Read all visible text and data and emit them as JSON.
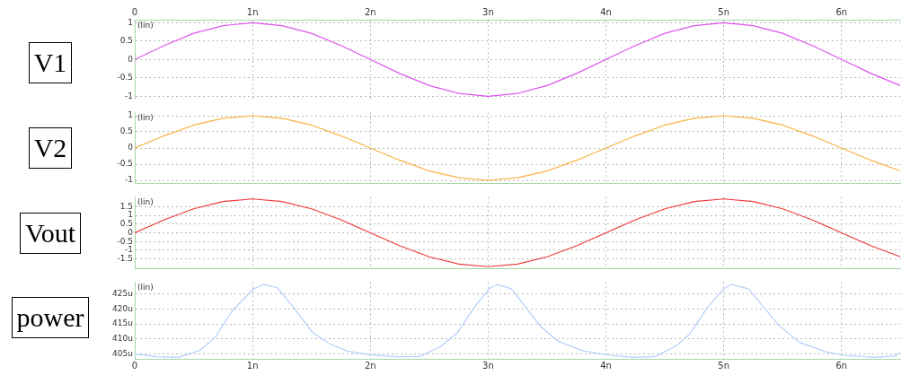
{
  "chart_data": [
    {
      "type": "line",
      "ylabel": "V1",
      "annotations": [
        "(lin)"
      ],
      "x": [
        0,
        0.25,
        0.5,
        0.75,
        1,
        1.25,
        1.5,
        1.75,
        2,
        2.25,
        2.5,
        2.75,
        3,
        3.25,
        3.5,
        3.75,
        4,
        4.25,
        4.5,
        4.75,
        5,
        5.25,
        5.5,
        5.75,
        6,
        6.25,
        6.5
      ],
      "series": [
        {
          "color": "#dd55ee",
          "values": [
            0,
            0.38,
            0.71,
            0.92,
            1,
            0.92,
            0.71,
            0.38,
            0,
            -0.38,
            -0.71,
            -0.92,
            -1,
            -0.92,
            -0.71,
            -0.38,
            0,
            0.38,
            0.71,
            0.92,
            1,
            0.92,
            0.71,
            0.38,
            0,
            -0.38,
            -0.71
          ]
        }
      ],
      "xlim": [
        0,
        6.5
      ],
      "xticks": [
        0,
        {
          "value": 1,
          "label": "1n"
        },
        {
          "value": 2,
          "label": "2n"
        },
        {
          "value": 3,
          "label": "3n"
        },
        {
          "value": 4,
          "label": "4n"
        },
        {
          "value": 5,
          "label": "5n"
        },
        {
          "value": 6,
          "label": "6n"
        }
      ],
      "ylim": [
        -1.08,
        1.08
      ],
      "yticks": [
        -1,
        -0.5,
        0,
        0.5,
        1
      ],
      "grid": true,
      "legend": false,
      "marker": "none"
    },
    {
      "type": "line",
      "ylabel": "V2",
      "annotations": [
        "(lin)"
      ],
      "x": [
        0,
        0.25,
        0.5,
        0.75,
        1,
        1.25,
        1.5,
        1.75,
        2,
        2.25,
        2.5,
        2.75,
        3,
        3.25,
        3.5,
        3.75,
        4,
        4.25,
        4.5,
        4.75,
        5,
        5.25,
        5.5,
        5.75,
        6,
        6.25,
        6.5
      ],
      "series": [
        {
          "color": "#f9b040",
          "values": [
            0,
            0.38,
            0.71,
            0.92,
            1,
            0.92,
            0.71,
            0.38,
            0,
            -0.38,
            -0.71,
            -0.92,
            -1,
            -0.92,
            -0.71,
            -0.38,
            0,
            0.38,
            0.71,
            0.92,
            1,
            0.92,
            0.71,
            0.38,
            0,
            -0.38,
            -0.71
          ]
        }
      ],
      "xlim": [
        0,
        6.5
      ],
      "xticks": [
        0,
        1,
        2,
        3,
        4,
        5,
        6
      ],
      "tick_labels": "y",
      "ylim": [
        -1.1,
        1.1
      ],
      "yticks": [
        -1,
        -0.5,
        0,
        0.5,
        1
      ],
      "grid": true,
      "legend": false,
      "marker": "none"
    },
    {
      "type": "line",
      "ylabel": "Vout",
      "annotations": [
        "(lin)"
      ],
      "x": [
        0,
        0.25,
        0.5,
        0.75,
        1,
        1.25,
        1.5,
        1.75,
        2,
        2.25,
        2.5,
        2.75,
        3,
        3.25,
        3.5,
        3.75,
        4,
        4.25,
        4.5,
        4.75,
        5,
        5.25,
        5.5,
        5.75,
        6,
        6.25,
        6.5
      ],
      "series": [
        {
          "color": "#f03a3a",
          "values": [
            0,
            0.75,
            1.38,
            1.8,
            1.95,
            1.8,
            1.38,
            0.75,
            0,
            -0.75,
            -1.38,
            -1.8,
            -1.95,
            -1.8,
            -1.38,
            -0.75,
            0,
            0.75,
            1.38,
            1.8,
            1.95,
            1.8,
            1.38,
            0.75,
            0,
            -0.75,
            -1.38
          ]
        }
      ],
      "xlim": [
        0,
        6.5
      ],
      "xticks": [
        0,
        1,
        2,
        3,
        4,
        5,
        6
      ],
      "tick_labels": "y",
      "ylim": [
        -2.07,
        2.07
      ],
      "yticks": [
        -1.5,
        -1,
        -0.5,
        0,
        0.5,
        1,
        1.5
      ],
      "grid": true,
      "legend": false,
      "marker": "none"
    },
    {
      "type": "line",
      "ylabel": "power",
      "annotations": [
        "(lin)"
      ],
      "series": [
        {
          "color": "#b5cff8",
          "x": [
            0,
            0.19,
            0.37,
            0.55,
            0.68,
            0.83,
            1.01,
            1.1,
            1.21,
            1.35,
            1.51,
            1.65,
            1.81,
            1.99,
            2.22,
            2.42,
            2.6,
            2.74,
            2.88,
            3.01,
            3.08,
            3.2,
            3.45,
            3.6,
            3.81,
            4.04,
            4.24,
            4.42,
            4.59,
            4.71,
            4.86,
            5,
            5.07,
            5.21,
            5.46,
            5.64,
            5.87,
            6.02,
            6.28,
            6.46,
            6.5
          ],
          "values": [
            405,
            404,
            403.8,
            406.1,
            410.4,
            419.5,
            426.8,
            428.2,
            427.1,
            420.4,
            412.1,
            408.4,
            405.8,
            404.7,
            404,
            404.1,
            407.5,
            412.1,
            420.4,
            426.8,
            428.2,
            426.7,
            413.9,
            409.1,
            405.9,
            404.5,
            403.8,
            404.1,
            407.5,
            411.6,
            420.4,
            426.8,
            428.2,
            426.7,
            414.8,
            408.9,
            405.6,
            404.5,
            403.8,
            404.3,
            405.5
          ]
        }
      ],
      "xlim": [
        0,
        6.5
      ],
      "xticks": [
        0,
        {
          "value": 1,
          "label": "1n"
        },
        {
          "value": 2,
          "label": "2n"
        },
        {
          "value": 3,
          "label": "3n"
        },
        {
          "value": 4,
          "label": "4n"
        },
        {
          "value": 5,
          "label": "5n"
        },
        {
          "value": 6,
          "label": "6n"
        }
      ],
      "ylim": [
        403.3,
        429
      ],
      "yticks": [
        {
          "value": 405,
          "label": "405u"
        },
        {
          "value": 410,
          "label": "410u"
        },
        {
          "value": 415,
          "label": "415u"
        },
        {
          "value": 420,
          "label": "420u"
        },
        {
          "value": 425,
          "label": "425u"
        }
      ],
      "grid": true,
      "legend": false,
      "marker": "none"
    }
  ]
}
